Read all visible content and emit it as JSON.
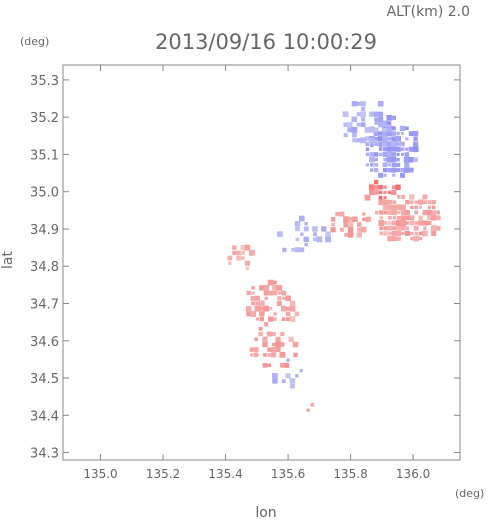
{
  "header": {
    "altitude_label": "ALT(km) 2.0",
    "timestamp": "2013/09/16 10:00:29"
  },
  "chart_data": {
    "type": "heatmap",
    "title": "2013/09/16 10:00:29",
    "xlabel": "lon",
    "ylabel": "lat",
    "xunit": "(deg)",
    "yunit": "(deg)",
    "xlim": [
      134.88,
      136.15
    ],
    "ylim": [
      34.28,
      35.34
    ],
    "xticks": [
      135.0,
      135.2,
      135.4,
      135.6,
      135.8,
      136.0
    ],
    "xtick_labels": [
      "135.0",
      "135.2",
      "135.4",
      "135.6",
      "135.8",
      "136.0"
    ],
    "yticks": [
      34.3,
      34.4,
      34.5,
      34.6,
      34.7,
      34.8,
      34.9,
      35.0,
      35.1,
      35.2,
      35.3
    ],
    "ytick_labels": [
      "34.3",
      "34.4",
      "34.5",
      "34.6",
      "34.7",
      "34.8",
      "34.9",
      "35.0",
      "35.1",
      "35.2",
      "35.3"
    ],
    "grid": false,
    "colors": {
      "positive": "#f07a7a",
      "negative": "#8a8af0",
      "axis": "#888888"
    },
    "regions": [
      {
        "lon": 135.93,
        "lat": 35.12,
        "rx": 0.09,
        "ry": 0.09,
        "v": -0.45,
        "density": 0.9
      },
      {
        "lon": 135.85,
        "lat": 35.18,
        "rx": 0.08,
        "ry": 0.07,
        "v": -0.3,
        "density": 0.6
      },
      {
        "lon": 135.98,
        "lat": 34.93,
        "rx": 0.11,
        "ry": 0.07,
        "v": 0.35,
        "density": 0.9
      },
      {
        "lon": 135.9,
        "lat": 35.0,
        "rx": 0.06,
        "ry": 0.03,
        "v": 0.7,
        "density": 0.8
      },
      {
        "lon": 135.8,
        "lat": 34.91,
        "rx": 0.07,
        "ry": 0.04,
        "v": 0.4,
        "density": 0.6
      },
      {
        "lon": 135.65,
        "lat": 34.88,
        "rx": 0.09,
        "ry": 0.05,
        "v": -0.25,
        "density": 0.45
      },
      {
        "lon": 135.55,
        "lat": 34.7,
        "rx": 0.09,
        "ry": 0.07,
        "v": 0.35,
        "density": 0.55
      },
      {
        "lon": 135.55,
        "lat": 34.58,
        "rx": 0.08,
        "ry": 0.06,
        "v": 0.4,
        "density": 0.5
      },
      {
        "lon": 135.6,
        "lat": 34.5,
        "rx": 0.07,
        "ry": 0.05,
        "v": -0.25,
        "density": 0.35
      },
      {
        "lon": 135.45,
        "lat": 34.82,
        "rx": 0.05,
        "ry": 0.04,
        "v": 0.3,
        "density": 0.3
      },
      {
        "lon": 135.68,
        "lat": 34.42,
        "rx": 0.03,
        "ry": 0.02,
        "v": 0.5,
        "density": 0.5
      }
    ]
  }
}
